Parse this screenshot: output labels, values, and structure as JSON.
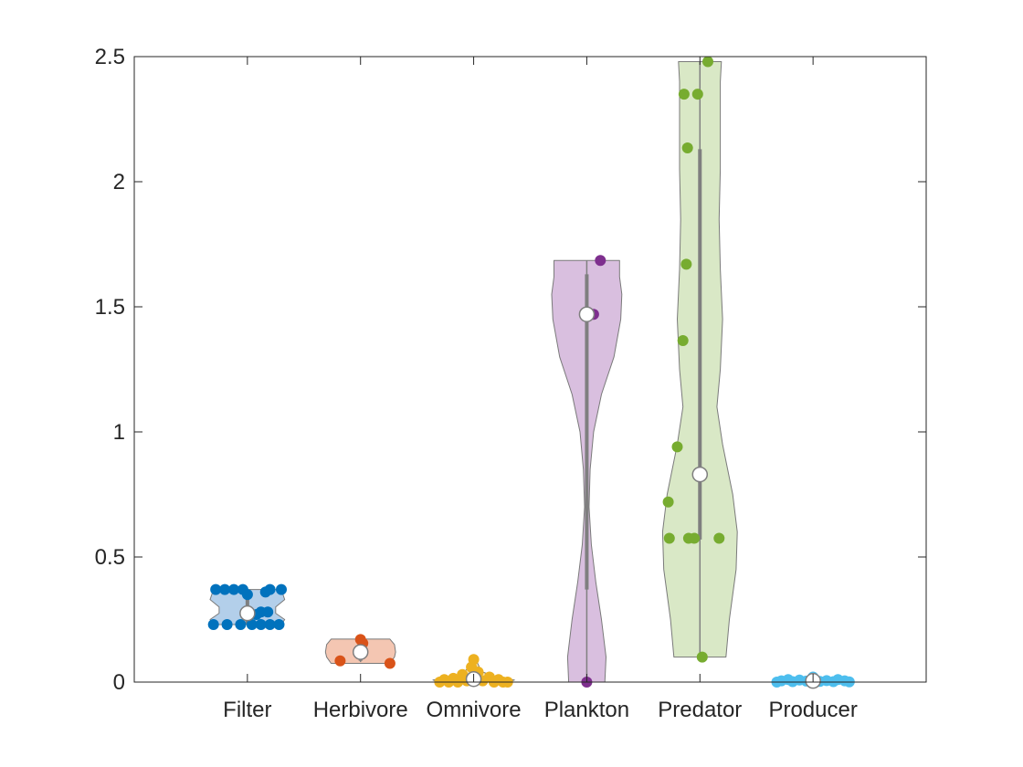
{
  "chart_data": {
    "type": "violin",
    "title": "",
    "xlabel": "",
    "ylabel": "",
    "ylim": [
      0,
      2.5
    ],
    "yticks": [
      0,
      0.5,
      1,
      1.5,
      2,
      2.5
    ],
    "ytick_labels": [
      "0",
      "0.5",
      "1",
      "1.5",
      "2",
      "2.5"
    ],
    "categories": [
      "Filter",
      "Herbivore",
      "Omnivore",
      "Plankton",
      "Predator",
      "Producer"
    ],
    "grid": false,
    "box": true,
    "groups": [
      {
        "category": "Filter",
        "color": "#0072BD",
        "fill": "#B3CFEA",
        "median": 0.275,
        "q1": 0.23,
        "q3": 0.355,
        "whisker": [
          0.23,
          0.37
        ],
        "profile": [
          [
            0.23,
            0.3
          ],
          [
            0.25,
            0.33
          ],
          [
            0.275,
            0.25
          ],
          [
            0.3,
            0.25
          ],
          [
            0.33,
            0.33
          ],
          [
            0.37,
            0.3
          ]
        ],
        "points": [
          0.37,
          0.37,
          0.37,
          0.37,
          0.37,
          0.37,
          0.36,
          0.35,
          0.28,
          0.28,
          0.27,
          0.23,
          0.23,
          0.23,
          0.23,
          0.23,
          0.23,
          0.23
        ],
        "jitter": [
          -0.28,
          -0.2,
          -0.12,
          -0.04,
          0.2,
          0.3,
          0.16,
          0.0,
          0.12,
          0.18,
          0.08,
          -0.18,
          -0.06,
          0.04,
          0.12,
          0.2,
          0.28,
          -0.3
        ]
      },
      {
        "category": "Herbivore",
        "color": "#D95319",
        "fill": "#F4C6B2",
        "median": 0.12,
        "q1": 0.085,
        "q3": 0.165,
        "whisker": [
          0.08,
          0.17
        ],
        "profile": [
          [
            0.075,
            0.26
          ],
          [
            0.1,
            0.3
          ],
          [
            0.12,
            0.31
          ],
          [
            0.15,
            0.3
          ],
          [
            0.172,
            0.26
          ]
        ],
        "points": [
          0.17,
          0.155,
          0.085,
          0.075
        ],
        "jitter": [
          0.0,
          0.02,
          -0.18,
          0.26
        ]
      },
      {
        "category": "Omnivore",
        "color": "#EDB120",
        "fill": "#F7E1A6",
        "median": 0.012,
        "q1": 0.005,
        "q3": 0.03,
        "whisker": [
          0.0,
          0.09
        ],
        "profile": [
          [
            0.0,
            0.3
          ],
          [
            0.008,
            0.36
          ],
          [
            0.02,
            0.2
          ],
          [
            0.04,
            0.08
          ],
          [
            0.06,
            0.05
          ],
          [
            0.09,
            0.02
          ]
        ],
        "points": [
          0.09,
          0.06,
          0.04,
          0.03,
          0.02,
          0.015,
          0.01,
          0.01,
          0.005,
          0.005,
          0.0,
          0.0,
          0.0,
          0.0,
          0.0,
          0.0
        ],
        "jitter": [
          0.0,
          -0.02,
          0.04,
          -0.1,
          0.14,
          -0.18,
          0.22,
          -0.26,
          0.08,
          -0.06,
          -0.3,
          -0.22,
          0.18,
          0.26,
          0.3,
          -0.14
        ]
      },
      {
        "category": "Plankton",
        "color": "#7E2F8E",
        "fill": "#D9BFDF",
        "median": 1.47,
        "q1": 0.37,
        "q3": 1.63,
        "whisker": [
          0.0,
          1.685
        ],
        "profile": [
          [
            0.0,
            0.16
          ],
          [
            0.1,
            0.17
          ],
          [
            0.25,
            0.13
          ],
          [
            0.4,
            0.08
          ],
          [
            0.55,
            0.04
          ],
          [
            0.7,
            0.02
          ],
          [
            0.85,
            0.03
          ],
          [
            1.0,
            0.06
          ],
          [
            1.15,
            0.13
          ],
          [
            1.3,
            0.24
          ],
          [
            1.45,
            0.3
          ],
          [
            1.55,
            0.31
          ],
          [
            1.62,
            0.29
          ],
          [
            1.685,
            0.29
          ]
        ],
        "points": [
          1.685,
          1.47,
          0.0
        ],
        "jitter": [
          0.12,
          0.06,
          0.0
        ]
      },
      {
        "category": "Predator",
        "color": "#77AC30",
        "fill": "#D9E8C6",
        "median": 0.83,
        "q1": 0.57,
        "q3": 2.13,
        "whisker": [
          0.1,
          2.48
        ],
        "profile": [
          [
            0.1,
            0.23
          ],
          [
            0.25,
            0.26
          ],
          [
            0.45,
            0.32
          ],
          [
            0.6,
            0.33
          ],
          [
            0.75,
            0.29
          ],
          [
            0.95,
            0.2
          ],
          [
            1.1,
            0.15
          ],
          [
            1.25,
            0.18
          ],
          [
            1.45,
            0.2
          ],
          [
            1.65,
            0.18
          ],
          [
            1.85,
            0.17
          ],
          [
            2.05,
            0.18
          ],
          [
            2.25,
            0.18
          ],
          [
            2.4,
            0.18
          ],
          [
            2.48,
            0.19
          ]
        ],
        "points": [
          2.48,
          2.35,
          2.35,
          2.135,
          1.67,
          1.365,
          0.94,
          0.72,
          0.575,
          0.575,
          0.575,
          0.575,
          0.1
        ],
        "jitter": [
          0.07,
          -0.14,
          -0.02,
          -0.11,
          -0.12,
          -0.15,
          -0.2,
          -0.28,
          -0.27,
          -0.1,
          -0.05,
          0.17,
          0.02
        ]
      },
      {
        "category": "Producer",
        "color": "#4DBEEE",
        "fill": "#C7E9F9",
        "median": 0.005,
        "q1": 0.0,
        "q3": 0.01,
        "whisker": [
          0.0,
          0.02
        ],
        "profile": [
          [
            0.0,
            0.32
          ],
          [
            0.005,
            0.34
          ],
          [
            0.01,
            0.28
          ],
          [
            0.015,
            0.08
          ],
          [
            0.02,
            0.02
          ]
        ],
        "points": [
          0.02,
          0.01,
          0.01,
          0.008,
          0.006,
          0.005,
          0.005,
          0.004,
          0.003,
          0.002,
          0.002,
          0.001,
          0.0,
          0.0,
          0.0
        ],
        "jitter": [
          0.0,
          -0.22,
          0.22,
          -0.12,
          0.12,
          -0.28,
          0.28,
          -0.06,
          0.06,
          -0.18,
          0.18,
          0.32,
          -0.32,
          0.02,
          -0.02
        ]
      }
    ]
  }
}
